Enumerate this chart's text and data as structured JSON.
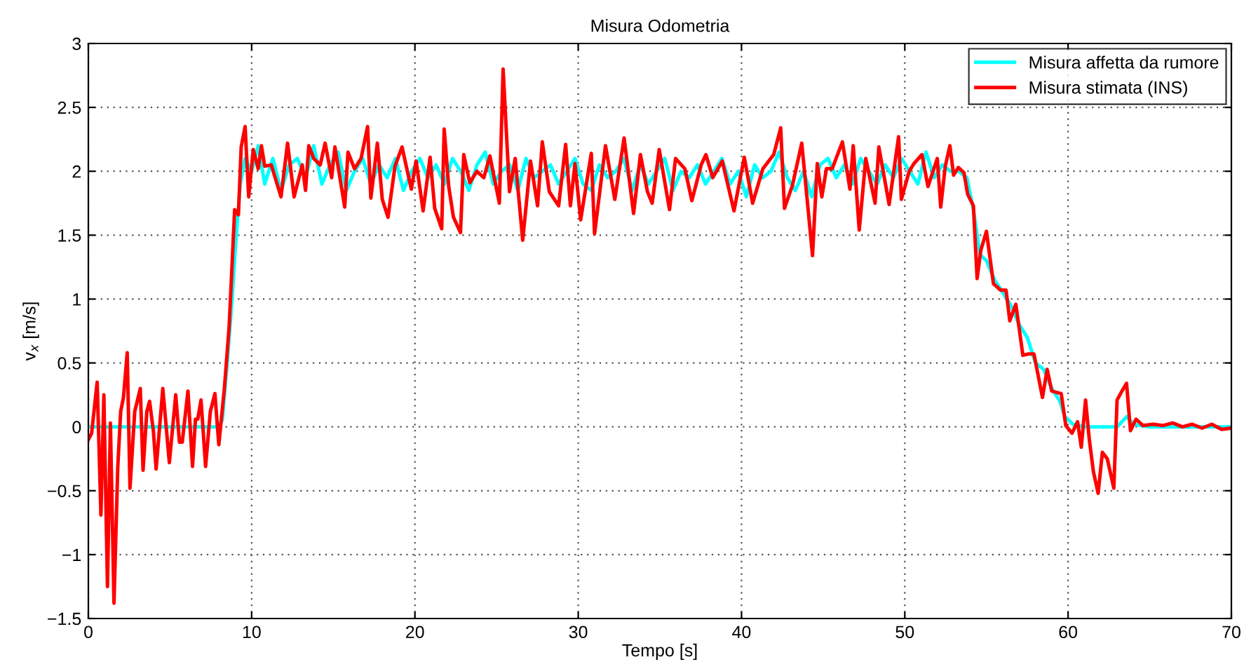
{
  "chart_data": {
    "type": "line",
    "title": "Misura Odometria",
    "xlabel": "Tempo [s]",
    "ylabel": "v$_{x}$ [m/s]",
    "xlim": [
      0,
      70
    ],
    "xticks": [
      0,
      10,
      20,
      30,
      40,
      50,
      60,
      70
    ],
    "ylim": [
      -1.5,
      3
    ],
    "yticks": [
      {
        "value": -1.5,
        "label": "−1.5"
      },
      {
        "value": -1,
        "label": "−1"
      },
      {
        "value": -0.5,
        "label": "−0.5"
      },
      0,
      0.5,
      1,
      1.5,
      2,
      2.5,
      3
    ],
    "grid": true,
    "legend": "top right",
    "line_style": "solid",
    "marker": "none",
    "series": [
      {
        "name": "Misura affetta da rumore",
        "color": "#00ffff",
        "x": [
          0,
          1,
          2,
          3,
          4,
          5,
          6,
          7,
          7.8,
          8.2,
          8.5,
          8.8,
          9.0,
          9.3,
          9.6,
          10.0,
          10.4,
          10.8,
          11.3,
          11.8,
          12.3,
          12.8,
          13.3,
          13.8,
          14.3,
          14.8,
          15.3,
          15.8,
          16.3,
          16.8,
          17.3,
          17.8,
          18.3,
          18.8,
          19.3,
          19.8,
          20.3,
          20.8,
          21.3,
          21.8,
          22.3,
          22.8,
          23.3,
          23.8,
          24.3,
          24.8,
          25.3,
          25.8,
          26.3,
          26.8,
          27.3,
          27.8,
          28.3,
          28.8,
          29.3,
          29.8,
          30.3,
          30.8,
          31.3,
          31.8,
          32.3,
          32.8,
          33.3,
          33.8,
          34.3,
          34.8,
          35.3,
          35.8,
          36.3,
          36.8,
          37.3,
          37.8,
          38.3,
          38.8,
          39.3,
          39.8,
          40.3,
          40.8,
          41.3,
          41.8,
          42.3,
          42.8,
          43.3,
          43.8,
          44.3,
          44.8,
          45.3,
          45.8,
          46.3,
          46.8,
          47.3,
          47.8,
          48.3,
          48.8,
          49.3,
          49.8,
          50.3,
          50.8,
          51.3,
          51.8,
          52.3,
          52.8,
          53.3,
          53.8,
          54.2,
          54.6,
          55.0,
          55.5,
          56.0,
          56.5,
          57.0,
          57.5,
          58.0,
          58.5,
          59.0,
          59.5,
          59.8,
          60.3,
          61,
          62,
          63,
          63.6,
          64,
          65,
          66,
          67,
          68,
          69,
          70
        ],
        "values": [
          0,
          0,
          0,
          0,
          0,
          0,
          0,
          0,
          0,
          0.05,
          0.5,
          1.0,
          1.4,
          1.9,
          2.1,
          2.0,
          2.2,
          1.9,
          2.1,
          1.85,
          2.05,
          2.1,
          1.95,
          2.2,
          1.9,
          2.05,
          2.15,
          1.85,
          2.0,
          2.1,
          1.9,
          2.05,
          1.95,
          2.1,
          1.85,
          2.0,
          2.1,
          1.95,
          2.05,
          1.9,
          2.1,
          2.0,
          1.85,
          2.05,
          2.15,
          1.9,
          2.0,
          2.05,
          1.85,
          2.1,
          1.95,
          2.0,
          2.05,
          1.9,
          2.0,
          2.1,
          1.9,
          1.85,
          2.05,
          1.95,
          2.0,
          2.1,
          1.85,
          2.05,
          1.9,
          2.0,
          2.1,
          1.85,
          2.0,
          1.95,
          2.05,
          1.9,
          2.0,
          2.1,
          1.9,
          2.0,
          1.8,
          2.05,
          1.95,
          2.0,
          2.15,
          1.95,
          1.85,
          2.0,
          1.8,
          2.05,
          2.1,
          1.95,
          2.05,
          1.9,
          2.1,
          2.0,
          1.9,
          2.05,
          1.95,
          2.1,
          2.0,
          1.9,
          2.15,
          1.95,
          2.05,
          2.0,
          2.0,
          1.95,
          1.7,
          1.35,
          1.3,
          1.15,
          1.05,
          0.95,
          0.8,
          0.7,
          0.5,
          0.45,
          0.3,
          0.2,
          0.08,
          0.02,
          0,
          0,
          0,
          0.08,
          0.02,
          0,
          0,
          0,
          0,
          0,
          0
        ]
      },
      {
        "name": "Misura stimata (INS)",
        "color": "#ff0000",
        "x": [
          0,
          0.2,
          0.54,
          0.77,
          0.95,
          1.17,
          1.35,
          1.57,
          1.8,
          1.98,
          2.15,
          2.38,
          2.55,
          2.84,
          3.18,
          3.35,
          3.58,
          3.75,
          3.98,
          4.15,
          4.56,
          4.96,
          5.35,
          5.58,
          5.75,
          6.1,
          6.38,
          6.56,
          6.7,
          6.9,
          7.18,
          7.47,
          7.75,
          7.99,
          8.33,
          8.62,
          8.96,
          9.19,
          9.36,
          9.6,
          9.82,
          10.1,
          10.4,
          10.6,
          10.8,
          11.2,
          11.8,
          12.2,
          12.6,
          13.1,
          13.3,
          13.5,
          13.8,
          14.2,
          14.5,
          14.9,
          15.1,
          15.7,
          15.9,
          16.3,
          16.7,
          17.1,
          17.3,
          17.7,
          18.0,
          18.35,
          18.78,
          19.21,
          19.78,
          20.07,
          20.5,
          20.93,
          21.21,
          21.64,
          21.79,
          22.07,
          22.36,
          22.79,
          22.99,
          23.36,
          23.79,
          24.22,
          24.59,
          25.17,
          25.4,
          25.79,
          26.14,
          26.6,
          27.08,
          27.51,
          27.8,
          28.23,
          28.8,
          29.23,
          29.52,
          29.8,
          30.15,
          30.8,
          31.0,
          31.67,
          32.24,
          32.81,
          33.39,
          33.81,
          34.24,
          34.53,
          34.96,
          35.59,
          35.96,
          36.53,
          36.96,
          37.53,
          37.82,
          38.24,
          38.82,
          39.54,
          40.17,
          40.68,
          41.31,
          41.97,
          42.4,
          42.63,
          43.12,
          43.69,
          44.35,
          44.64,
          44.92,
          45.2,
          45.55,
          46.18,
          46.64,
          46.84,
          47.21,
          47.61,
          48.18,
          48.41,
          49.04,
          49.62,
          49.79,
          50.27,
          50.56,
          51.05,
          51.42,
          51.99,
          52.2,
          52.48,
          52.76,
          52.99,
          53.28,
          53.62,
          53.85,
          54.2,
          54.43,
          54.65,
          55.0,
          55.43,
          55.86,
          56.2,
          56.43,
          56.8,
          57.23,
          57.57,
          57.91,
          58.43,
          58.72,
          59.0,
          59.58,
          59.86,
          60.24,
          60.58,
          60.81,
          61.07,
          61.3,
          61.55,
          61.84,
          62.1,
          62.4,
          62.8,
          63.0,
          63.3,
          63.58,
          63.82,
          64.16,
          64.59,
          65.2,
          65.8,
          66.4,
          67.0,
          67.6,
          68.2,
          68.8,
          69.4,
          70
        ],
        "values": [
          -0.1,
          -0.05,
          0.35,
          -0.69,
          0.25,
          -1.25,
          0.03,
          -1.38,
          -0.32,
          0.12,
          0.23,
          0.58,
          -0.48,
          0.12,
          0.3,
          -0.34,
          0.12,
          0.2,
          -0.03,
          -0.33,
          0.3,
          -0.28,
          0.25,
          -0.12,
          -0.12,
          0.28,
          -0.31,
          0.06,
          0.06,
          0.21,
          -0.31,
          0.12,
          0.26,
          -0.14,
          0.3,
          0.78,
          1.7,
          1.66,
          2.19,
          2.35,
          1.8,
          2.17,
          2.02,
          2.2,
          2.04,
          2.05,
          1.8,
          2.22,
          1.8,
          2.05,
          1.85,
          2.2,
          2.1,
          2.05,
          2.22,
          1.95,
          2.19,
          1.72,
          2.15,
          2.02,
          2.1,
          2.35,
          1.79,
          2.22,
          1.78,
          1.64,
          2.04,
          2.19,
          1.86,
          2.08,
          1.69,
          2.11,
          1.71,
          1.55,
          2.33,
          1.88,
          1.64,
          1.52,
          2.13,
          1.91,
          2.0,
          1.95,
          2.12,
          1.75,
          2.8,
          1.84,
          2.1,
          1.46,
          2.08,
          1.73,
          2.23,
          1.84,
          1.73,
          2.21,
          1.73,
          2.06,
          1.62,
          2.14,
          1.51,
          2.2,
          1.78,
          2.26,
          1.67,
          2.13,
          1.84,
          1.75,
          2.17,
          1.7,
          2.1,
          2.02,
          1.77,
          2.05,
          2.13,
          1.95,
          2.08,
          1.69,
          2.11,
          1.75,
          2.02,
          2.13,
          2.34,
          1.71,
          1.89,
          2.22,
          1.34,
          2.06,
          1.8,
          2.02,
          2.02,
          2.23,
          1.86,
          2.2,
          1.54,
          2.1,
          1.75,
          2.19,
          1.74,
          2.27,
          1.78,
          2.0,
          2.06,
          2.13,
          1.88,
          2.1,
          1.72,
          2.04,
          2.2,
          1.97,
          2.03,
          1.99,
          1.82,
          1.73,
          1.16,
          1.38,
          1.53,
          1.12,
          1.07,
          1.07,
          0.83,
          0.96,
          0.56,
          0.57,
          0.57,
          0.23,
          0.45,
          0.28,
          0.26,
          0.01,
          -0.05,
          0.04,
          -0.16,
          0.21,
          -0.1,
          -0.35,
          -0.52,
          -0.2,
          -0.25,
          -0.48,
          0.21,
          0.28,
          0.34,
          -0.03,
          0.06,
          0.01,
          0.02,
          0.01,
          0.03,
          0.0,
          0.02,
          -0.01,
          0.02,
          -0.02,
          -0.01
        ]
      }
    ]
  }
}
